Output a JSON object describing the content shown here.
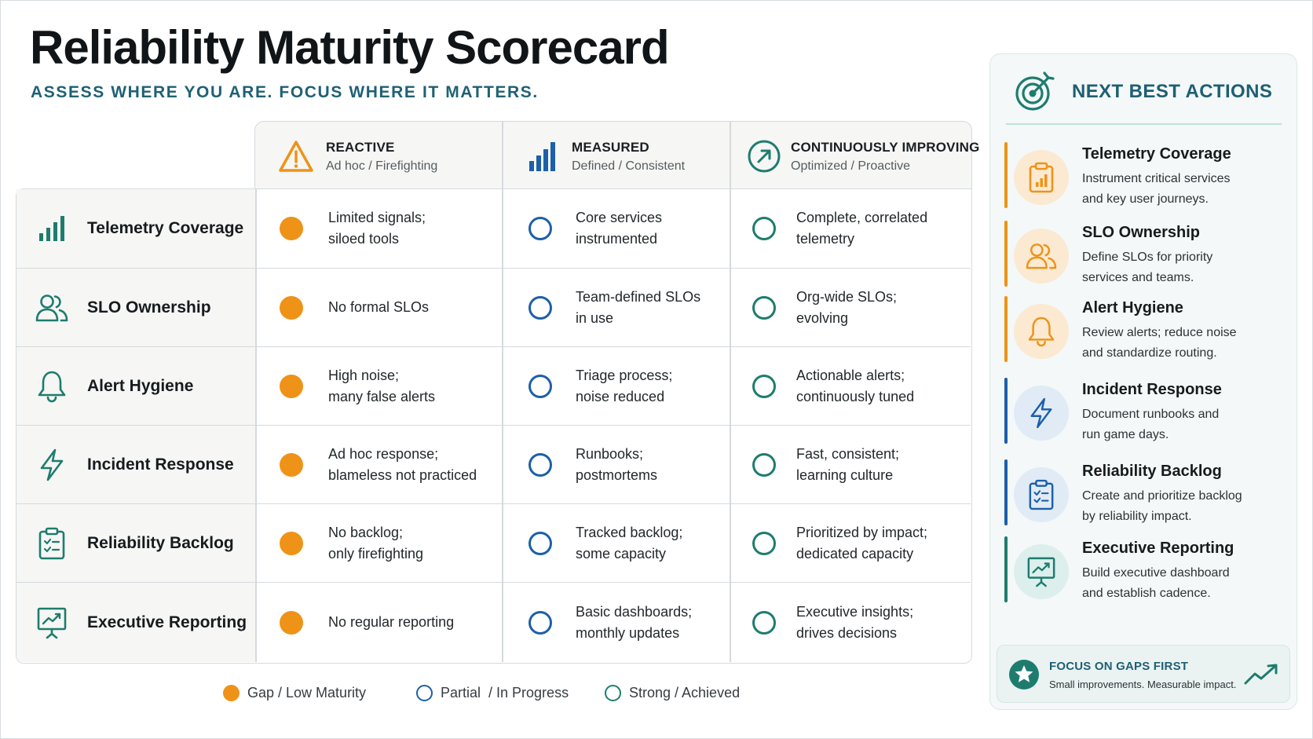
{
  "title": "Reliability Maturity Scorecard",
  "subtitle": "ASSESS WHERE YOU ARE. FOCUS WHERE IT MATTERS.",
  "levels": [
    {
      "name": "REACTIVE",
      "sub": "Ad hoc / Firefighting",
      "icon": "warning-triangle-icon"
    },
    {
      "name": "MEASURED",
      "sub": "Defined / Consistent",
      "icon": "bar-chart-icon"
    },
    {
      "name": "CONTINUOUSLY IMPROVING",
      "sub": "Optimized / Proactive",
      "icon": "arrow-up-right-circle-icon"
    }
  ],
  "rows": [
    {
      "label": "Telemetry Coverage",
      "icon": "signal-bars-icon",
      "cells": [
        "Limited signals;\nsiloed tools",
        "Core services\ninstrumented",
        "Complete, correlated\ntelemetry"
      ]
    },
    {
      "label": "SLO Ownership",
      "icon": "users-icon",
      "cells": [
        "No formal SLOs",
        "Team-defined SLOs\nin use",
        "Org-wide SLOs;\nevolving"
      ]
    },
    {
      "label": "Alert Hygiene",
      "icon": "bell-icon",
      "cells": [
        "High noise;\nmany false alerts",
        "Triage process;\nnoise reduced",
        "Actionable alerts;\ncontinuously tuned"
      ]
    },
    {
      "label": "Incident Response",
      "icon": "lightning-icon",
      "cells": [
        "Ad hoc response;\nblameless not practiced",
        "Runbooks;\npostmortems",
        "Fast, consistent;\nlearning culture"
      ]
    },
    {
      "label": "Reliability Backlog",
      "icon": "clipboard-check-icon",
      "cells": [
        "No backlog;\nonly firefighting",
        "Tracked backlog;\nsome capacity",
        "Prioritized by impact;\ndedicated capacity"
      ]
    },
    {
      "label": "Executive Reporting",
      "icon": "presentation-chart-icon",
      "cells": [
        "No regular reporting",
        "Basic dashboards;\nmonthly updates",
        "Executive insights;\ndrives decisions"
      ]
    }
  ],
  "legend": [
    {
      "label": "Gap / Low Maturity",
      "kind": "gap"
    },
    {
      "label": "Partial  / In Progress",
      "kind": "partial"
    },
    {
      "label": "Strong / Achieved",
      "kind": "strong"
    }
  ],
  "colors": {
    "gap": "#ee9317",
    "partial": "#1d5fa8",
    "strong": "#1e7c6e",
    "teal_title": "#1e5f73"
  },
  "panel": {
    "title": "NEXT BEST ACTIONS",
    "actions": [
      {
        "title": "Telemetry Coverage",
        "desc": "Instrument critical services\nand key user journeys.",
        "icon": "chart-clipboard-icon",
        "accent": "#ee9317"
      },
      {
        "title": "SLO Ownership",
        "desc": "Define SLOs for priority\nservices and teams.",
        "icon": "users-icon",
        "accent": "#ee9317"
      },
      {
        "title": "Alert Hygiene",
        "desc": "Review alerts; reduce noise\nand standardize routing.",
        "icon": "bell-icon",
        "accent": "#ee9317"
      },
      {
        "title": "Incident Response",
        "desc": "Document runbooks and\nrun game days.",
        "icon": "lightning-icon",
        "accent": "#1d5fa8"
      },
      {
        "title": "Reliability Backlog",
        "desc": "Create and prioritize backlog\nby reliability impact.",
        "icon": "clipboard-check-icon",
        "accent": "#1d5fa8"
      },
      {
        "title": "Executive Reporting",
        "desc": "Build executive dashboard\nand establish cadence.",
        "icon": "presentation-chart-icon",
        "accent": "#1e7c6e"
      }
    ],
    "focus": {
      "title": "FOCUS ON GAPS FIRST",
      "sub": "Small improvements. Measurable impact."
    }
  }
}
